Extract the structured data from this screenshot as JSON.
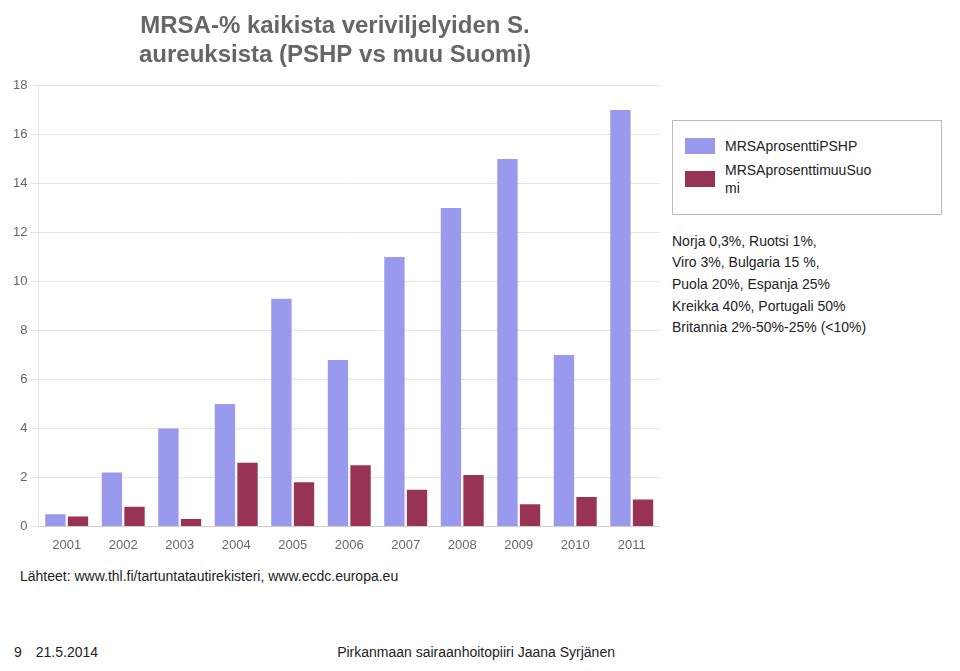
{
  "chart_data": {
    "type": "bar",
    "title": [
      "MRSA-% kaikista veriviljelyiden S.",
      "aureuksista (PSHP vs muu Suomi)"
    ],
    "categories": [
      "2001",
      "2002",
      "2003",
      "2004",
      "2005",
      "2006",
      "2007",
      "2008",
      "2009",
      "2010",
      "2011"
    ],
    "series": [
      {
        "name": "MRSAprosenttiPSHP",
        "color": "#9999ee",
        "values": [
          0.5,
          2.2,
          4.0,
          5.0,
          9.3,
          6.8,
          11.0,
          13.0,
          15.0,
          7.0,
          17.0
        ]
      },
      {
        "name": "MRSAprosenttimuuSuo\nmi",
        "color": "#993355",
        "values": [
          0.4,
          0.8,
          0.3,
          2.6,
          1.8,
          2.5,
          1.5,
          2.1,
          0.9,
          1.2,
          1.1
        ]
      }
    ],
    "ylim": [
      0,
      18
    ],
    "yticks": [
      0,
      2,
      4,
      6,
      8,
      10,
      12,
      14,
      16,
      18
    ],
    "grid": true,
    "legend": "right",
    "annotation": "Norja 0,3%, Ruotsi 1%,\nViro 3%, Bulgaria 15 %,\nPuola 20%, Espanja 25%\nKreikka 40%, Portugali 50%\nBritannia 2%-50%-25% (<10%)",
    "source": "Lähteet: www.thl.fi/tartuntatautirekisteri, www.ecdc.europa.eu",
    "footer": [
      "9",
      "21.5.2014",
      "Pirkanmaan sairaanhoitopiiri Jaana Syrjänen"
    ]
  }
}
